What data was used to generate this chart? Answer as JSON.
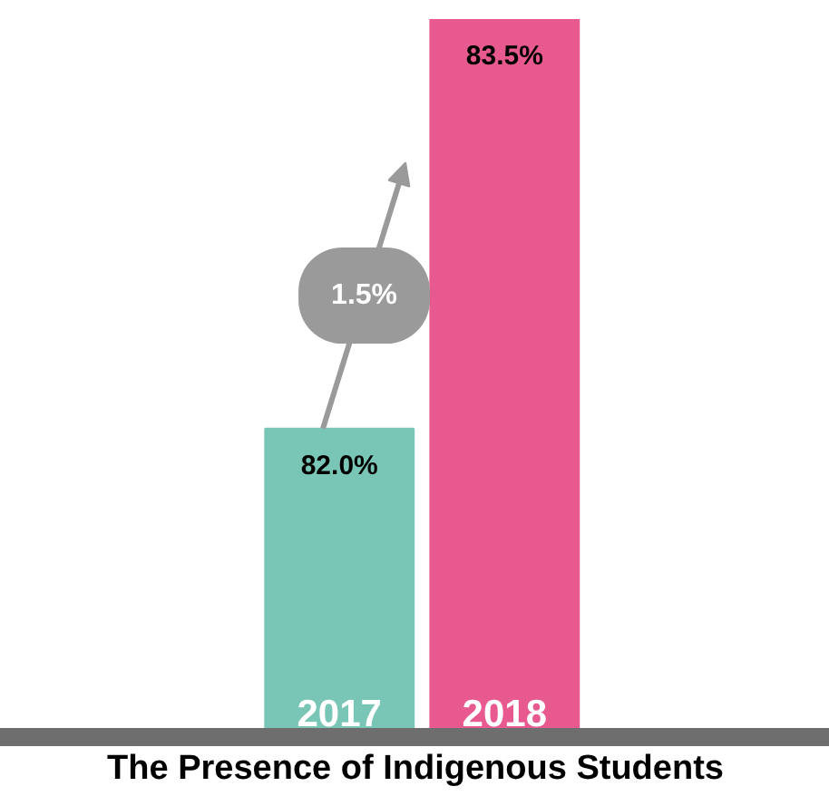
{
  "chart_data": {
    "type": "bar",
    "title": "The Presence of Indigenous Students",
    "categories": [
      "2017",
      "2018"
    ],
    "values": [
      82.0,
      83.5
    ],
    "value_labels": [
      "82.0%",
      "83.5%"
    ],
    "colors": [
      "#79c6b6",
      "#e85a8f"
    ],
    "ylim": [
      80.87,
      83.5
    ],
    "tick_labels": "x",
    "grid": false,
    "annotations": [
      "1.5%"
    ]
  }
}
